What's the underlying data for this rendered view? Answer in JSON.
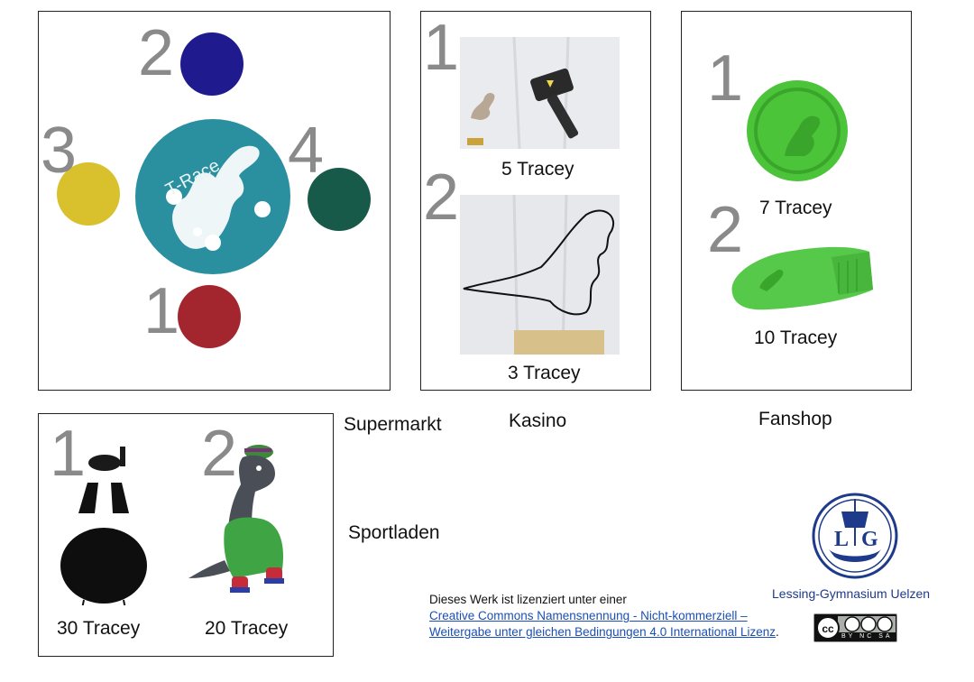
{
  "supermarkt": {
    "label": "Supermarkt",
    "coin_text": "T-Race",
    "items": [
      {
        "number": "2",
        "color": "#1f1b8f"
      },
      {
        "number": "3",
        "color": "#d9c12e"
      },
      {
        "number": "4",
        "color": "#175a4a"
      },
      {
        "number": "1",
        "color": "#a3262e"
      }
    ],
    "center_color": "#2a8f9e"
  },
  "kasino": {
    "label": "Kasino",
    "items": [
      {
        "number": "1",
        "price": "5 Tracey"
      },
      {
        "number": "2",
        "price": "3 Tracey"
      }
    ]
  },
  "fanshop": {
    "label": "Fanshop",
    "items": [
      {
        "number": "1",
        "price": "7 Tracey"
      },
      {
        "number": "2",
        "price": "10 Tracey"
      }
    ],
    "accent": "#4cc43a"
  },
  "sportladen": {
    "label": "Sportladen",
    "items": [
      {
        "number": "1",
        "price": "30 Tracey"
      },
      {
        "number": "2",
        "price": "20 Tracey"
      }
    ]
  },
  "license": {
    "intro": "Dieses Werk ist lizenziert unter einer",
    "link_line1": "Creative Commons Namensnennung - Nicht-kommerziell –",
    "link_line2": "Weitergabe unter gleichen Bedingungen 4.0 International Lizenz",
    "suffix": ".",
    "badge_text": "BY NC SA"
  },
  "school": {
    "name": "Lessing-Gymnasium Uelzen",
    "logo_text": "LG",
    "color": "#1e3a8a"
  }
}
